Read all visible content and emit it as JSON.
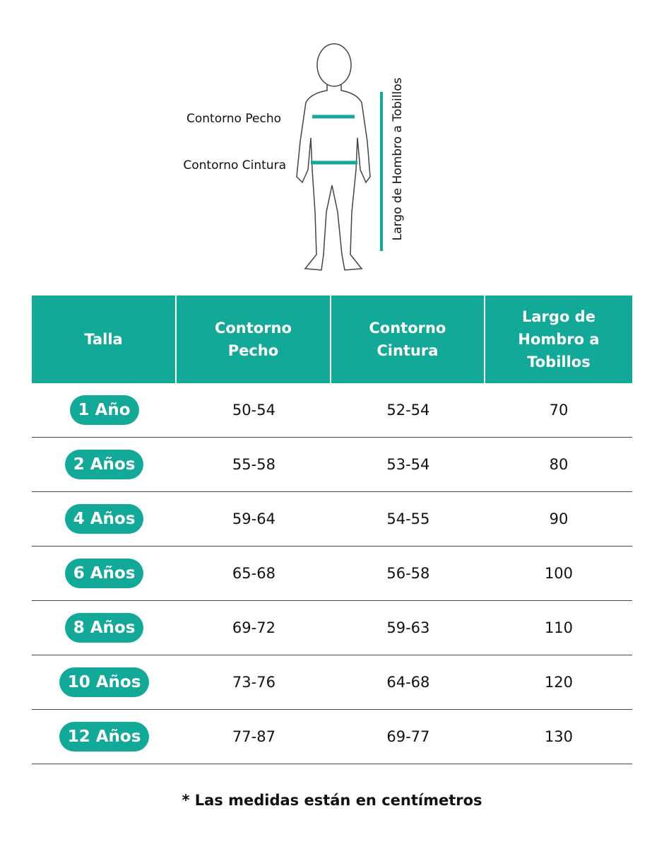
{
  "diagram": {
    "labels": {
      "chest": "Contorno Pecho",
      "waist": "Contorno Cintura",
      "length": "Largo de Hombro a Tobillos"
    }
  },
  "table": {
    "headers": [
      "Talla",
      "Contorno Pecho",
      "Contorno Cintura",
      "Largo de Hombro a Tobillos"
    ],
    "rows": [
      [
        "1 Año",
        "50-54",
        "52-54",
        "70"
      ],
      [
        "2 Años",
        "55-58",
        "53-54",
        "80"
      ],
      [
        "4 Años",
        "59-64",
        "54-55",
        "90"
      ],
      [
        "6 Años",
        "65-68",
        "56-58",
        "100"
      ],
      [
        "8 Años",
        "69-72",
        "59-63",
        "110"
      ],
      [
        "10 Años",
        "73-76",
        "64-68",
        "120"
      ],
      [
        "12 Años",
        "77-87",
        "69-77",
        "130"
      ]
    ]
  },
  "footnote": "* Las medidas están en centímetros"
}
